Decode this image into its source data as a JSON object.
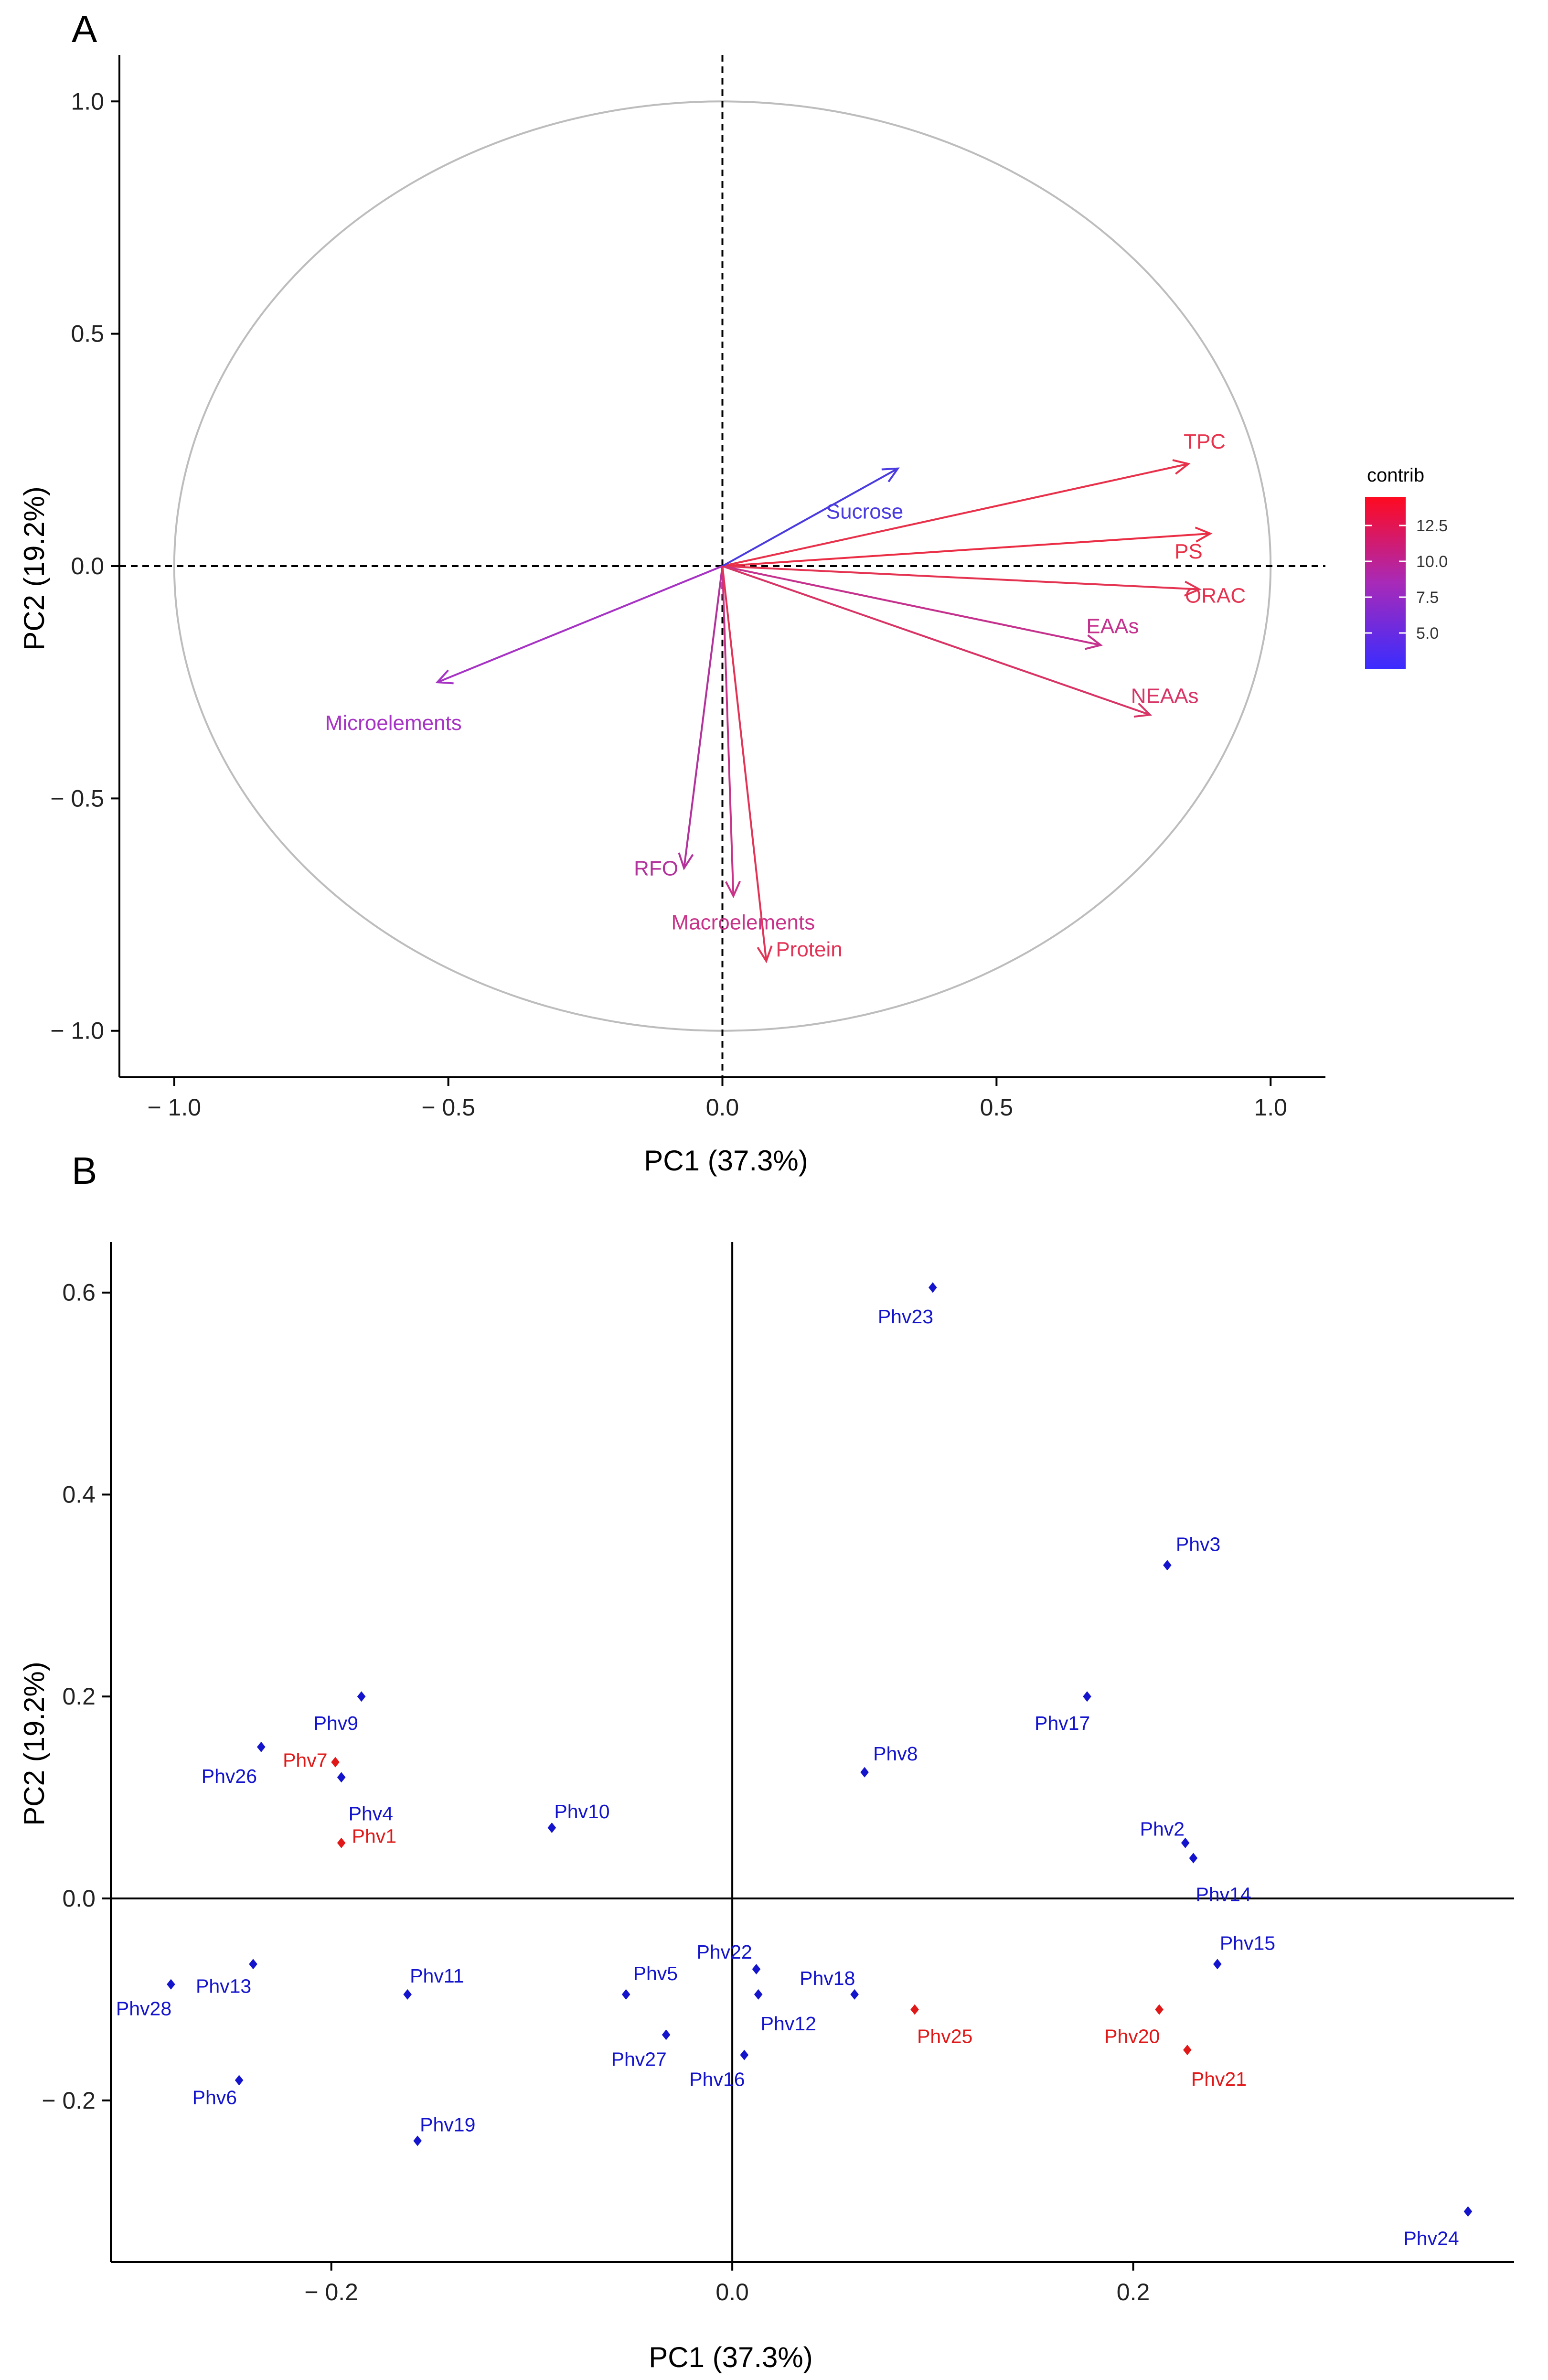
{
  "chart_data": [
    {
      "panel": "A",
      "type": "scatter",
      "subtype": "pca-variable-correlation-circle",
      "xlabel": "PC1 (37.3%)",
      "ylabel": "PC2 (19.2%)",
      "xlim": [
        -1.1,
        1.1
      ],
      "ylim": [
        -1.1,
        1.1
      ],
      "xticks": [
        -1.0,
        -0.5,
        0.0,
        0.5,
        1.0
      ],
      "yticks": [
        -1.0,
        -0.5,
        0.0,
        0.5,
        1.0
      ],
      "xtick_labels": [
        "− 1.0",
        "− 0.5",
        "0.0",
        "0.5",
        "1.0"
      ],
      "ytick_labels": [
        "− 1.0",
        "− 0.5",
        "0.0",
        "0.5",
        "1.0"
      ],
      "unit_circle": true,
      "legend": {
        "title": "contrib",
        "position": "right",
        "range": [
          2.5,
          14.5
        ],
        "ticks": [
          5.0,
          7.5,
          10.0,
          12.5
        ],
        "tick_labels": [
          "5.0",
          "7.5",
          "10.0",
          "12.5"
        ],
        "low_color": "#3a2cff",
        "high_color": "#ff0a20"
      },
      "vectors": [
        {
          "name": "TPC",
          "x": 0.85,
          "y": 0.22,
          "contrib": 12.5,
          "color": "#e8324c"
        },
        {
          "name": "PS",
          "x": 0.89,
          "y": 0.07,
          "contrib": 13.0,
          "color": "#ea2e45"
        },
        {
          "name": "ORAC",
          "x": 0.87,
          "y": -0.05,
          "contrib": 12.0,
          "color": "#e43452"
        },
        {
          "name": "EAAs",
          "x": 0.69,
          "y": -0.17,
          "contrib": 8.5,
          "color": "#c4328e"
        },
        {
          "name": "NEAAs",
          "x": 0.78,
          "y": -0.32,
          "contrib": 11.0,
          "color": "#d83465"
        },
        {
          "name": "Sucrose",
          "x": 0.32,
          "y": 0.21,
          "contrib": 3.0,
          "color": "#4a3be0"
        },
        {
          "name": "Microelements",
          "x": -0.52,
          "y": -0.25,
          "contrib": 6.5,
          "color": "#a633c4"
        },
        {
          "name": "RFO",
          "x": -0.07,
          "y": -0.65,
          "contrib": 7.5,
          "color": "#b3329c"
        },
        {
          "name": "Macroelements",
          "x": 0.02,
          "y": -0.71,
          "contrib": 9.0,
          "color": "#c8348a"
        },
        {
          "name": "Protein",
          "x": 0.08,
          "y": -0.85,
          "contrib": 12.0,
          "color": "#e23456"
        }
      ]
    },
    {
      "panel": "B",
      "type": "scatter",
      "subtype": "pca-individuals",
      "xlabel": "PC1 (37.3%)",
      "ylabel": "PC2 (19.2%)",
      "xlim": [
        -0.31,
        0.39
      ],
      "ylim": [
        -0.36,
        0.65
      ],
      "xticks": [
        -0.2,
        0.0,
        0.2
      ],
      "yticks": [
        -0.2,
        0.0,
        0.2,
        0.4,
        0.6
      ],
      "xtick_labels": [
        "− 0.2",
        "0.0",
        "0.2"
      ],
      "ytick_labels": [
        "− 0.2",
        "0.0",
        "0.2",
        "0.4",
        "0.6"
      ],
      "group_colors": {
        "blue": "#1414cc",
        "red": "#e01818"
      },
      "points": [
        {
          "name": "Phv1",
          "x": -0.195,
          "y": 0.055,
          "group": "red"
        },
        {
          "name": "Phv2",
          "x": 0.226,
          "y": 0.055,
          "group": "blue"
        },
        {
          "name": "Phv3",
          "x": 0.217,
          "y": 0.33,
          "group": "blue"
        },
        {
          "name": "Phv4",
          "x": -0.195,
          "y": 0.12,
          "group": "blue"
        },
        {
          "name": "Phv5",
          "x": -0.053,
          "y": -0.095,
          "group": "blue"
        },
        {
          "name": "Phv6",
          "x": -0.246,
          "y": -0.18,
          "group": "blue"
        },
        {
          "name": "Phv7",
          "x": -0.198,
          "y": 0.135,
          "group": "red"
        },
        {
          "name": "Phv8",
          "x": 0.066,
          "y": 0.125,
          "group": "blue"
        },
        {
          "name": "Phv9",
          "x": -0.185,
          "y": 0.2,
          "group": "blue"
        },
        {
          "name": "Phv10",
          "x": -0.09,
          "y": 0.07,
          "group": "blue"
        },
        {
          "name": "Phv11",
          "x": -0.162,
          "y": -0.095,
          "group": "blue"
        },
        {
          "name": "Phv12",
          "x": 0.013,
          "y": -0.095,
          "group": "blue"
        },
        {
          "name": "Phv13",
          "x": -0.239,
          "y": -0.065,
          "group": "blue"
        },
        {
          "name": "Phv14",
          "x": 0.23,
          "y": 0.04,
          "group": "blue"
        },
        {
          "name": "Phv15",
          "x": 0.242,
          "y": -0.065,
          "group": "blue"
        },
        {
          "name": "Phv16",
          "x": 0.006,
          "y": -0.155,
          "group": "blue"
        },
        {
          "name": "Phv17",
          "x": 0.177,
          "y": 0.2,
          "group": "blue"
        },
        {
          "name": "Phv18",
          "x": 0.061,
          "y": -0.095,
          "group": "blue"
        },
        {
          "name": "Phv19",
          "x": -0.157,
          "y": -0.24,
          "group": "blue"
        },
        {
          "name": "Phv20",
          "x": 0.213,
          "y": -0.11,
          "group": "red"
        },
        {
          "name": "Phv21",
          "x": 0.227,
          "y": -0.15,
          "group": "red"
        },
        {
          "name": "Phv22",
          "x": 0.012,
          "y": -0.07,
          "group": "blue"
        },
        {
          "name": "Phv23",
          "x": 0.1,
          "y": 0.605,
          "group": "blue"
        },
        {
          "name": "Phv24",
          "x": 0.367,
          "y": -0.31,
          "group": "blue"
        },
        {
          "name": "Phv25",
          "x": 0.091,
          "y": -0.11,
          "group": "red"
        },
        {
          "name": "Phv26",
          "x": -0.235,
          "y": 0.15,
          "group": "blue"
        },
        {
          "name": "Phv27",
          "x": -0.033,
          "y": -0.135,
          "group": "blue"
        },
        {
          "name": "Phv28",
          "x": -0.28,
          "y": -0.085,
          "group": "blue"
        }
      ]
    }
  ]
}
